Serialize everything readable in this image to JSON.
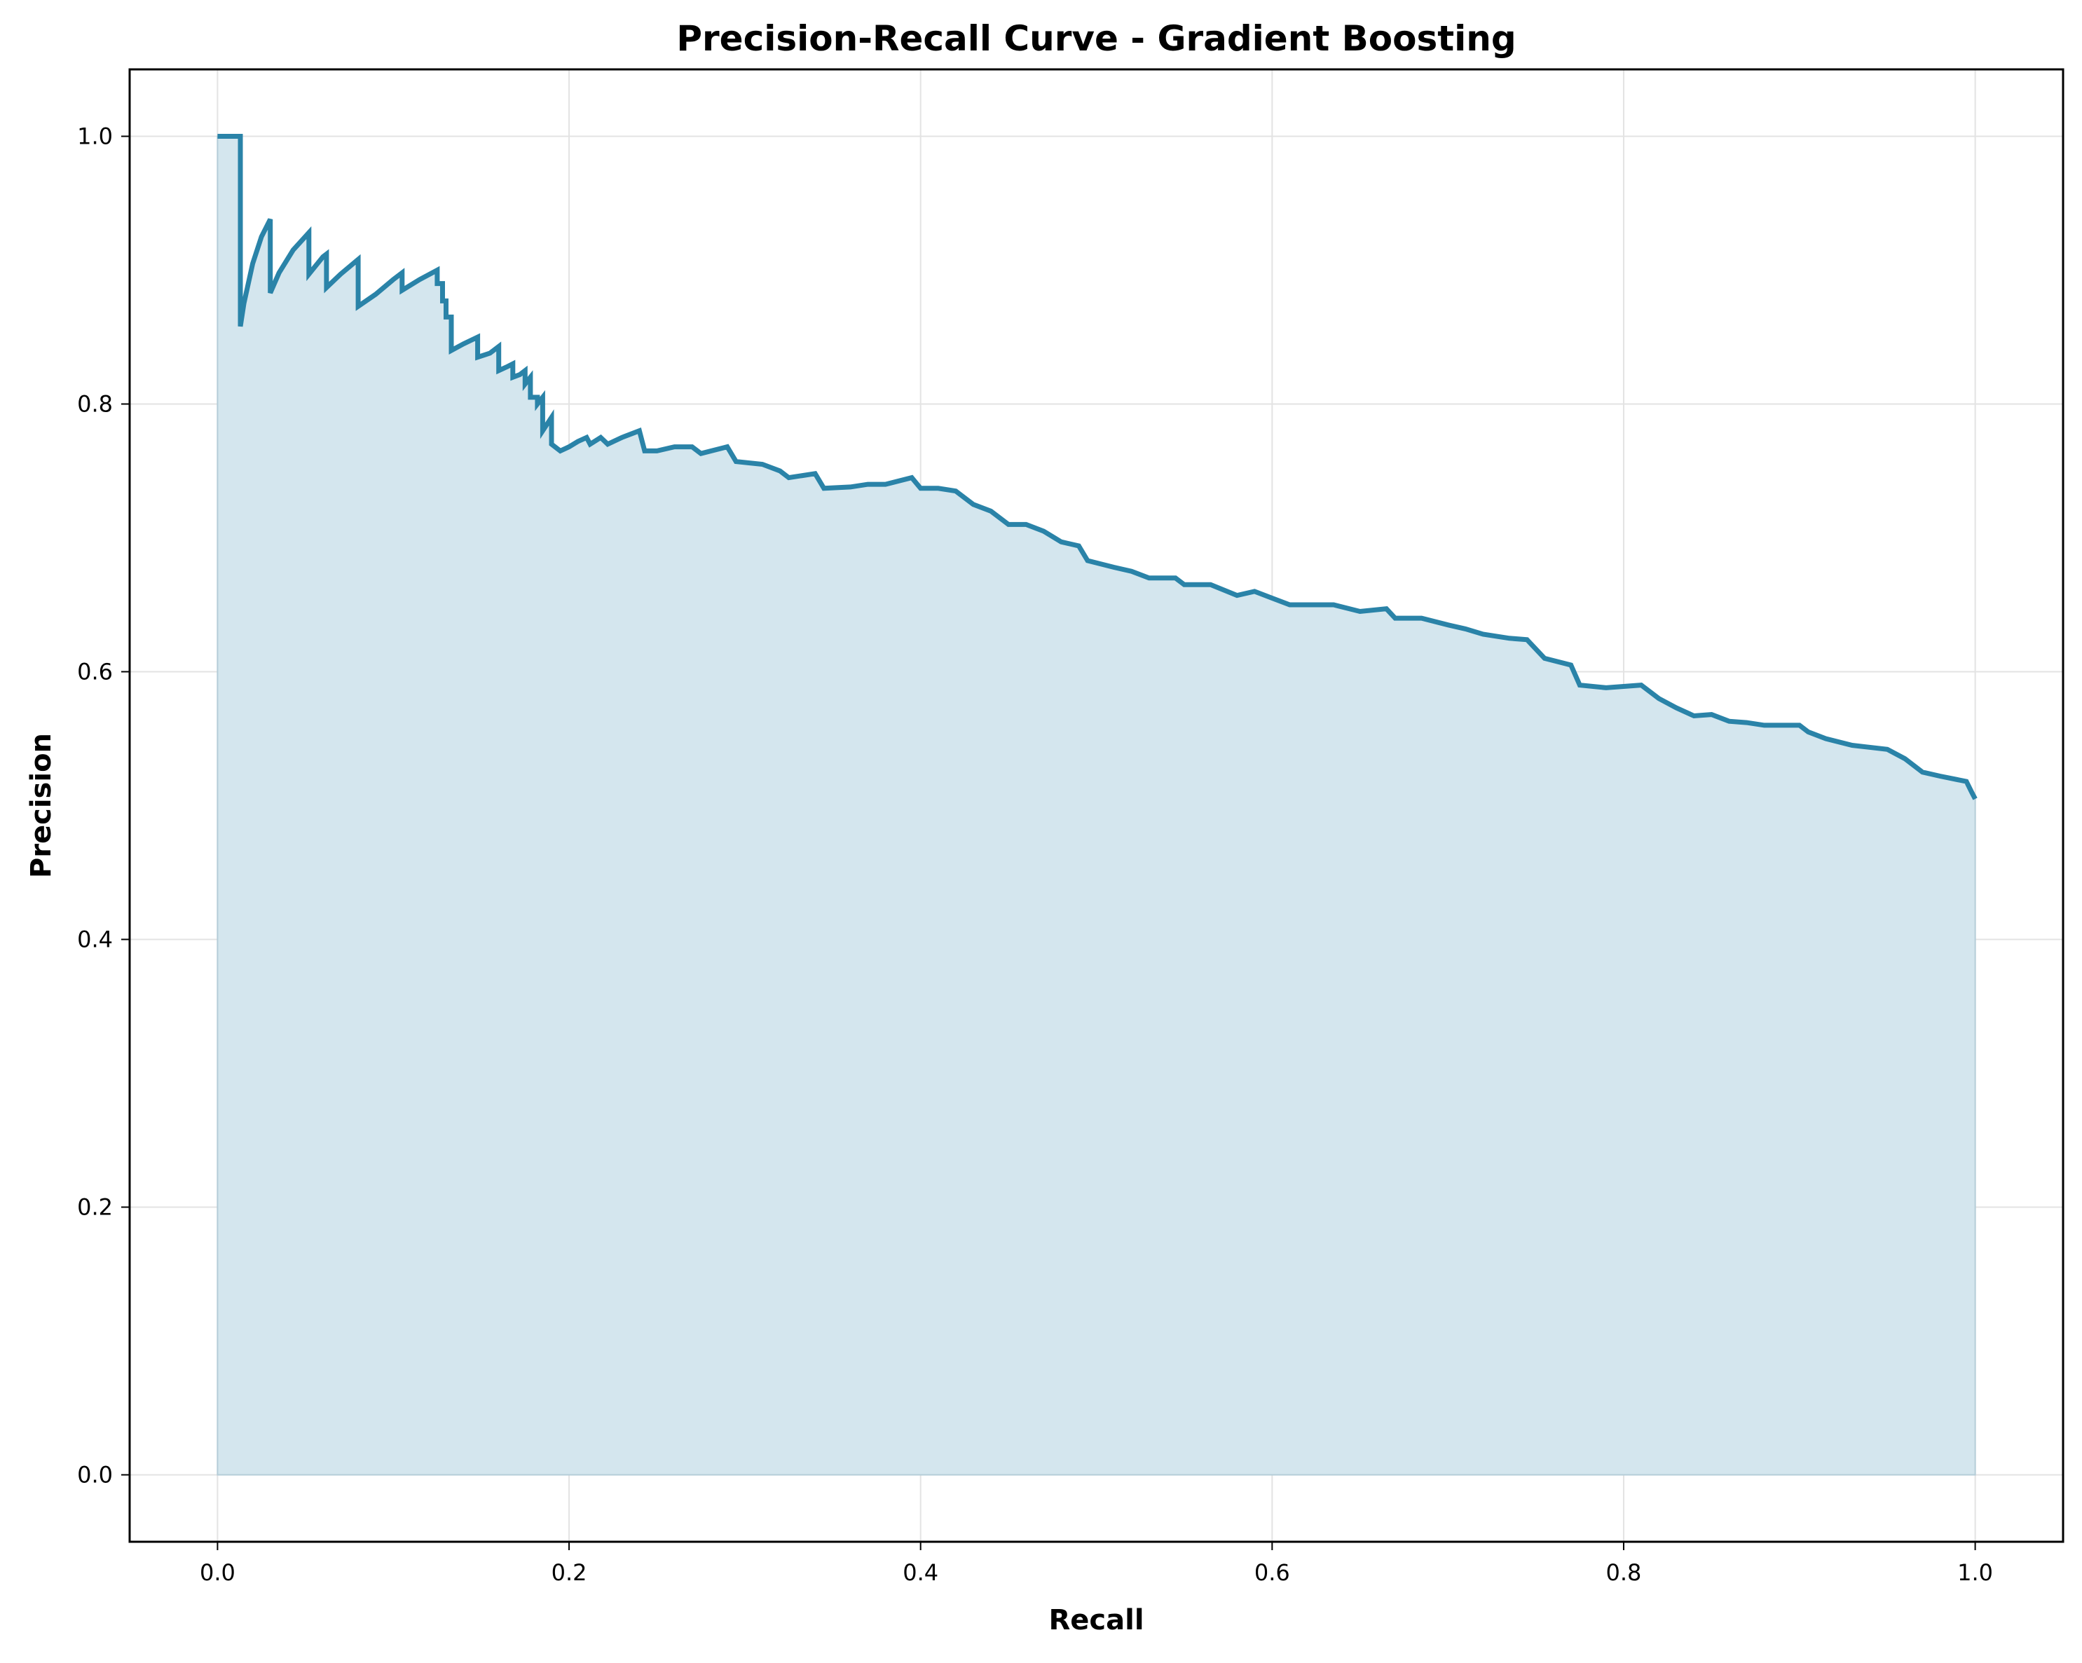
{
  "chart_data": {
    "type": "area",
    "title": "Precision-Recall Curve - Gradient Boosting",
    "xlabel": "Recall",
    "ylabel": "Precision",
    "xlim": [
      -0.05,
      1.05
    ],
    "ylim": [
      -0.05,
      1.05
    ],
    "xticks": [
      "0.0",
      "0.2",
      "0.4",
      "0.6",
      "0.8",
      "1.0"
    ],
    "yticks": [
      "0.0",
      "0.2",
      "0.4",
      "0.6",
      "0.8",
      "1.0"
    ],
    "grid": true,
    "legend": "none",
    "colors": {
      "line": "#2a83a8",
      "fill": "#d4e6ee",
      "grid": "#e3e3e3",
      "axis": "#000000"
    },
    "series": [
      {
        "points": [
          [
            0.0,
            1.0
          ],
          [
            0.013,
            1.0
          ],
          [
            0.013,
            0.858
          ],
          [
            0.015,
            0.875
          ],
          [
            0.02,
            0.905
          ],
          [
            0.025,
            0.925
          ],
          [
            0.03,
            0.938
          ],
          [
            0.03,
            0.883
          ],
          [
            0.035,
            0.898
          ],
          [
            0.043,
            0.915
          ],
          [
            0.052,
            0.928
          ],
          [
            0.052,
            0.897
          ],
          [
            0.06,
            0.91
          ],
          [
            0.062,
            0.912
          ],
          [
            0.062,
            0.887
          ],
          [
            0.07,
            0.897
          ],
          [
            0.08,
            0.908
          ],
          [
            0.08,
            0.873
          ],
          [
            0.09,
            0.882
          ],
          [
            0.1,
            0.893
          ],
          [
            0.105,
            0.898
          ],
          [
            0.105,
            0.885
          ],
          [
            0.115,
            0.893
          ],
          [
            0.125,
            0.9
          ],
          [
            0.125,
            0.89
          ],
          [
            0.128,
            0.89
          ],
          [
            0.128,
            0.877
          ],
          [
            0.13,
            0.877
          ],
          [
            0.13,
            0.865
          ],
          [
            0.133,
            0.865
          ],
          [
            0.133,
            0.84
          ],
          [
            0.14,
            0.845
          ],
          [
            0.148,
            0.85
          ],
          [
            0.148,
            0.835
          ],
          [
            0.155,
            0.838
          ],
          [
            0.16,
            0.843
          ],
          [
            0.16,
            0.825
          ],
          [
            0.165,
            0.828
          ],
          [
            0.168,
            0.83
          ],
          [
            0.168,
            0.82
          ],
          [
            0.172,
            0.822
          ],
          [
            0.175,
            0.825
          ],
          [
            0.175,
            0.815
          ],
          [
            0.178,
            0.82
          ],
          [
            0.178,
            0.805
          ],
          [
            0.182,
            0.805
          ],
          [
            0.182,
            0.8
          ],
          [
            0.185,
            0.805
          ],
          [
            0.185,
            0.78
          ],
          [
            0.19,
            0.79
          ],
          [
            0.19,
            0.77
          ],
          [
            0.195,
            0.765
          ],
          [
            0.2,
            0.768
          ],
          [
            0.205,
            0.772
          ],
          [
            0.21,
            0.775
          ],
          [
            0.212,
            0.77
          ],
          [
            0.218,
            0.775
          ],
          [
            0.222,
            0.77
          ],
          [
            0.23,
            0.775
          ],
          [
            0.24,
            0.78
          ],
          [
            0.243,
            0.765
          ],
          [
            0.25,
            0.765
          ],
          [
            0.26,
            0.768
          ],
          [
            0.27,
            0.768
          ],
          [
            0.275,
            0.763
          ],
          [
            0.29,
            0.768
          ],
          [
            0.295,
            0.757
          ],
          [
            0.31,
            0.755
          ],
          [
            0.32,
            0.75
          ],
          [
            0.325,
            0.745
          ],
          [
            0.34,
            0.748
          ],
          [
            0.345,
            0.737
          ],
          [
            0.36,
            0.738
          ],
          [
            0.37,
            0.74
          ],
          [
            0.38,
            0.74
          ],
          [
            0.395,
            0.745
          ],
          [
            0.4,
            0.737
          ],
          [
            0.41,
            0.737
          ],
          [
            0.42,
            0.735
          ],
          [
            0.43,
            0.725
          ],
          [
            0.44,
            0.72
          ],
          [
            0.45,
            0.71
          ],
          [
            0.46,
            0.71
          ],
          [
            0.47,
            0.705
          ],
          [
            0.48,
            0.697
          ],
          [
            0.49,
            0.694
          ],
          [
            0.495,
            0.683
          ],
          [
            0.51,
            0.678
          ],
          [
            0.52,
            0.675
          ],
          [
            0.53,
            0.67
          ],
          [
            0.545,
            0.67
          ],
          [
            0.55,
            0.665
          ],
          [
            0.565,
            0.665
          ],
          [
            0.58,
            0.657
          ],
          [
            0.59,
            0.66
          ],
          [
            0.6,
            0.655
          ],
          [
            0.61,
            0.65
          ],
          [
            0.62,
            0.65
          ],
          [
            0.635,
            0.65
          ],
          [
            0.65,
            0.645
          ],
          [
            0.665,
            0.647
          ],
          [
            0.67,
            0.64
          ],
          [
            0.685,
            0.64
          ],
          [
            0.7,
            0.635
          ],
          [
            0.71,
            0.632
          ],
          [
            0.72,
            0.628
          ],
          [
            0.735,
            0.625
          ],
          [
            0.745,
            0.624
          ],
          [
            0.755,
            0.61
          ],
          [
            0.77,
            0.605
          ],
          [
            0.775,
            0.59
          ],
          [
            0.79,
            0.588
          ],
          [
            0.81,
            0.59
          ],
          [
            0.82,
            0.58
          ],
          [
            0.83,
            0.573
          ],
          [
            0.84,
            0.567
          ],
          [
            0.85,
            0.568
          ],
          [
            0.86,
            0.563
          ],
          [
            0.87,
            0.562
          ],
          [
            0.88,
            0.56
          ],
          [
            0.9,
            0.56
          ],
          [
            0.905,
            0.555
          ],
          [
            0.915,
            0.55
          ],
          [
            0.93,
            0.545
          ],
          [
            0.95,
            0.542
          ],
          [
            0.96,
            0.535
          ],
          [
            0.97,
            0.525
          ],
          [
            0.98,
            0.522
          ],
          [
            0.995,
            0.518
          ],
          [
            0.998,
            0.51
          ],
          [
            1.0,
            0.505
          ]
        ]
      }
    ]
  }
}
